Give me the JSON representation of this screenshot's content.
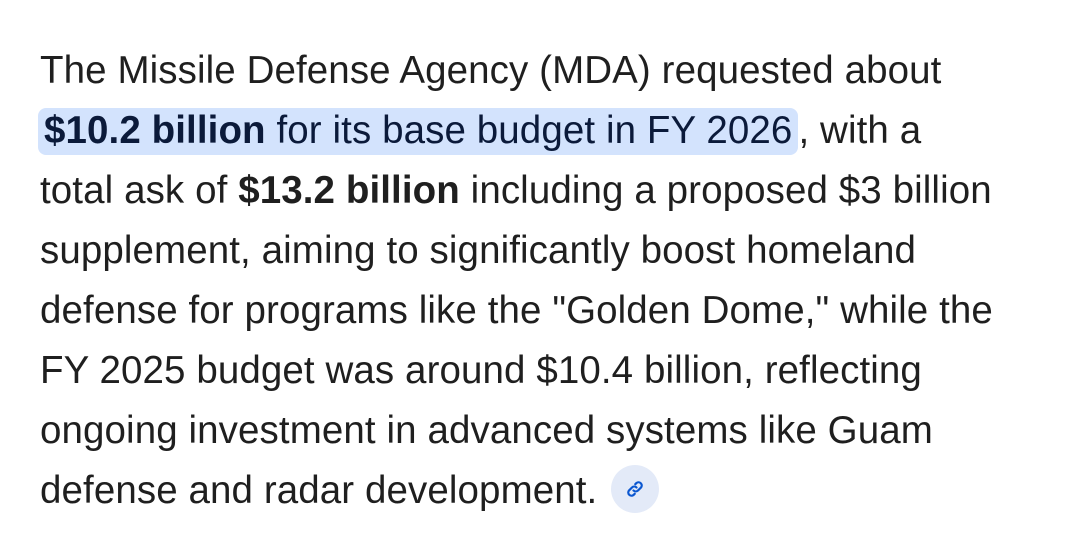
{
  "answer": {
    "line1": "The Missile Defense Agency (MDA) requested about",
    "line2_highlight_bold": "$10.2 billion",
    "line2_highlight_rest": " for its base budget in FY 2026",
    "line2_after": ", with a",
    "line3_before": "total ask of ",
    "line3_bold": "$13.2 billion",
    "line3_after": " including a proposed $3 billion",
    "line4": "supplement, aiming to significantly boost homeland",
    "line5": "defense for programs like the \"Golden Dome,\" while the",
    "line6": "FY 2025 budget was around $10.4 billion, reflecting",
    "line7": "ongoing investment in advanced systems like Guam",
    "line8": "defense and radar development."
  },
  "source_link": {
    "icon": "link-icon",
    "accent_color": "#0b57d0"
  }
}
